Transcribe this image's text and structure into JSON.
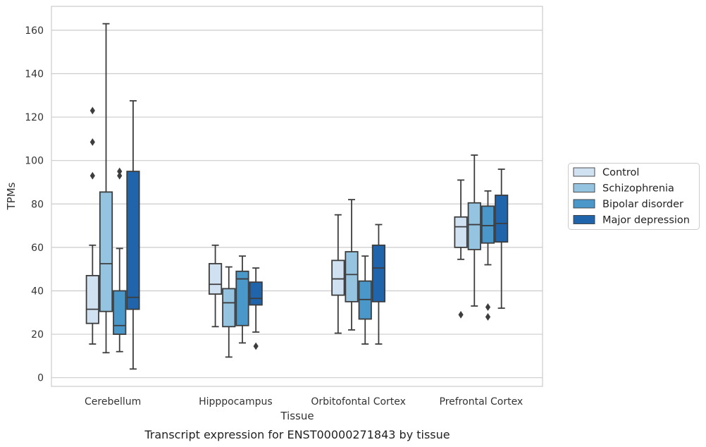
{
  "caption": "Transcript expression for ENST00000271843 by tissue",
  "chart_data": {
    "type": "box",
    "xlabel": "Tissue",
    "ylabel": "TPMs",
    "ylim": [
      -4,
      171
    ],
    "yticks": [
      0,
      20,
      40,
      60,
      80,
      100,
      120,
      140,
      160
    ],
    "grid": "horizontal",
    "legend_position": "right",
    "categories": [
      "Cerebellum",
      "Hipppocampus",
      "Orbitofontal Cortex",
      "Prefrontal Cortex"
    ],
    "series": [
      {
        "name": "Control",
        "color": "#d0e1f2",
        "boxes": [
          {
            "whislo": 15.5,
            "q1": 25,
            "med": 31.5,
            "q3": 47,
            "whishi": 61,
            "fliers": []
          },
          {
            "whislo": 23.5,
            "q1": 38.5,
            "med": 43,
            "q3": 52.5,
            "whishi": 61,
            "fliers": []
          },
          {
            "whislo": 20.5,
            "q1": 38,
            "med": 45.5,
            "q3": 54,
            "whishi": 75,
            "fliers": []
          },
          {
            "whislo": 54.5,
            "q1": 60,
            "med": 69.5,
            "q3": 74,
            "whishi": 91,
            "fliers": [
              29
            ]
          }
        ]
      },
      {
        "name": "Schizophrenia",
        "color": "#94c4df",
        "boxes": [
          {
            "whislo": 11.5,
            "q1": 30.5,
            "med": 52.5,
            "q3": 85.5,
            "whishi": 163,
            "fliers": []
          },
          {
            "whislo": 9.5,
            "q1": 23.5,
            "med": 34.5,
            "q3": 41,
            "whishi": 51,
            "fliers": []
          },
          {
            "whislo": 22,
            "q1": 35,
            "med": 47.5,
            "q3": 58,
            "whishi": 82,
            "fliers": []
          },
          {
            "whislo": 33,
            "q1": 59,
            "med": 70.5,
            "q3": 80.5,
            "whishi": 102.5,
            "fliers": []
          }
        ]
      },
      {
        "name": "Bipolar disorder",
        "color": "#4a98c9",
        "boxes": [
          {
            "whislo": 12,
            "q1": 20,
            "med": 24,
            "q3": 40,
            "whishi": 59.5,
            "fliers": [
              93,
              95
            ]
          },
          {
            "whislo": 16,
            "q1": 24,
            "med": 45.5,
            "q3": 49,
            "whishi": 56,
            "fliers": []
          },
          {
            "whislo": 15.5,
            "q1": 27,
            "med": 36,
            "q3": 44.5,
            "whishi": 56,
            "fliers": []
          },
          {
            "whislo": 52,
            "q1": 62,
            "med": 70,
            "q3": 79,
            "whishi": 86,
            "fliers": [
              28,
              32.5
            ]
          }
        ]
      },
      {
        "name": "Major depression",
        "color": "#2064ab",
        "boxes": [
          {
            "whislo": 4,
            "q1": 31.5,
            "med": 37,
            "q3": 95,
            "whishi": 127.5,
            "fliers": []
          },
          {
            "whislo": 21,
            "q1": 33.5,
            "med": 36.5,
            "q3": 44,
            "whishi": 50.5,
            "fliers": [
              14.5
            ]
          },
          {
            "whislo": 15.5,
            "q1": 35,
            "med": 50.5,
            "q3": 61,
            "whishi": 70.5,
            "fliers": []
          },
          {
            "whislo": 32,
            "q1": 62.5,
            "med": 71,
            "q3": 84,
            "whishi": 96,
            "fliers": []
          }
        ]
      }
    ],
    "extra_fliers": [
      {
        "category": 0,
        "series": 0,
        "values": [
          93,
          108.5,
          123
        ]
      }
    ]
  }
}
